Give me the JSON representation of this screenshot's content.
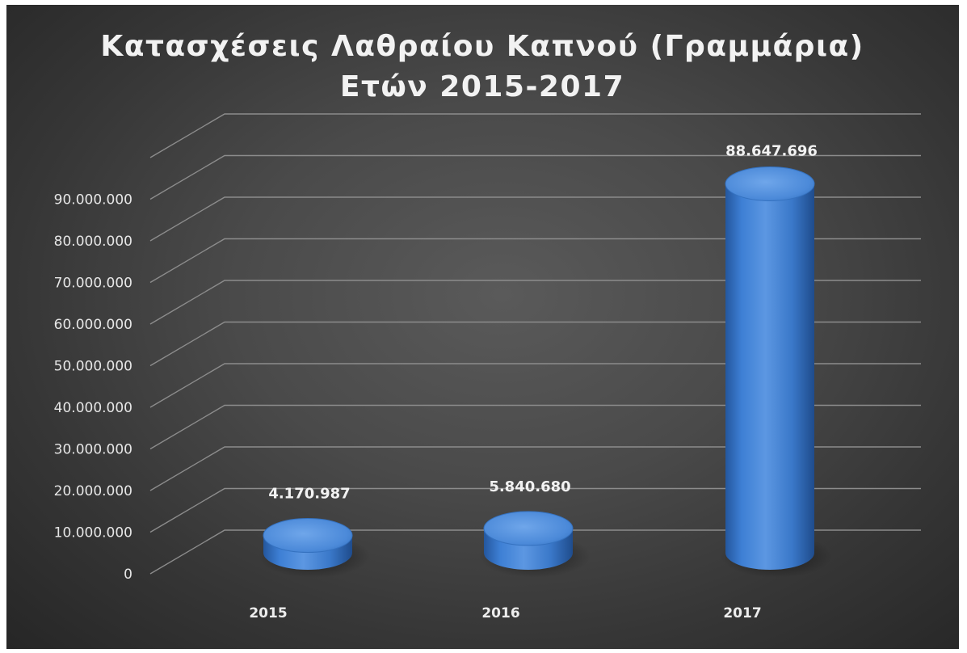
{
  "chart_data": {
    "type": "bar",
    "title": "Κατασχέσεις Λαθραίου Καπνού (Γραμμάρια)",
    "subtitle": "Ετών 2015-2017",
    "categories": [
      "2015",
      "2016",
      "2017"
    ],
    "values": [
      4170987,
      5840680,
      88647696
    ],
    "data_labels": [
      "4.170.987",
      "5.840.680",
      "88.647.696"
    ],
    "y_ticks": [
      0,
      10000000,
      20000000,
      30000000,
      40000000,
      50000000,
      60000000,
      70000000,
      80000000,
      90000000
    ],
    "y_tick_labels": [
      "0",
      "10.000.000",
      "20.000.000",
      "30.000.000",
      "40.000.000",
      "50.000.000",
      "60.000.000",
      "70.000.000",
      "80.000.000",
      "90.000.000"
    ],
    "ylim": [
      0,
      100000000
    ],
    "grid": true,
    "style": "3d-cylinder",
    "colors": {
      "bar": "#3d7fd4",
      "bar_light": "#6aa3e8",
      "bar_dark": "#1e4f94",
      "background": "#4a4a4a",
      "gridline": "#8c8c8c",
      "text": "#f2f2f2"
    }
  }
}
